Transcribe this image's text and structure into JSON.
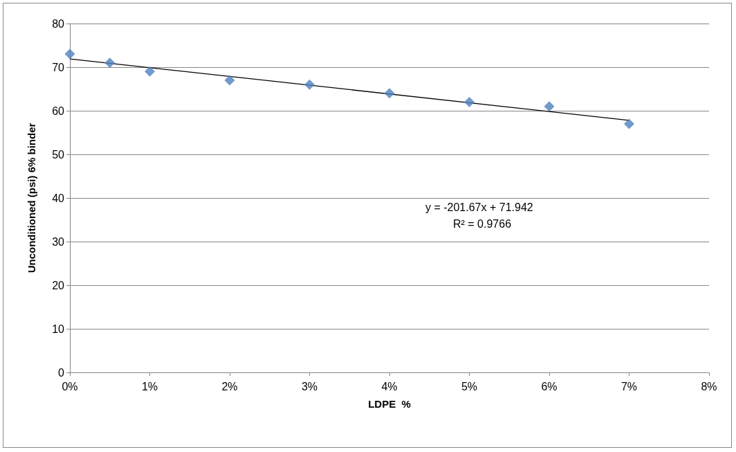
{
  "chart_data": {
    "type": "scatter",
    "xlabel": "LDPE  %",
    "ylabel": "Unconditioned (psi) 6% binder",
    "series": [
      {
        "color": "#4f81bd",
        "marker": "diamond",
        "x": [
          0,
          0.005,
          0.01,
          0.02,
          0.03,
          0.04,
          0.05,
          0.06,
          0.07
        ],
        "values": [
          73,
          71,
          69,
          67,
          66,
          64,
          62,
          61,
          57
        ]
      },
      {
        "type": "line",
        "color": "#000000",
        "marker": "none",
        "line_style": "solid",
        "x": [
          0,
          0.07
        ],
        "values": [
          71.9,
          57.8
        ]
      }
    ],
    "xlim": [
      0,
      0.08
    ],
    "xticks": [
      {
        "value": 0,
        "label": "0%"
      },
      {
        "value": 0.01,
        "label": "1%"
      },
      {
        "value": 0.02,
        "label": "2%"
      },
      {
        "value": 0.03,
        "label": "3%"
      },
      {
        "value": 0.04,
        "label": "4%"
      },
      {
        "value": 0.05,
        "label": "5%"
      },
      {
        "value": 0.06,
        "label": "6%"
      },
      {
        "value": 0.07,
        "label": "7%"
      },
      {
        "value": 0.08,
        "label": "8%"
      }
    ],
    "ylim": [
      0,
      80
    ],
    "yticks": [
      0,
      10,
      20,
      30,
      40,
      50,
      60,
      70,
      80
    ],
    "grid": "y",
    "annotations": [
      "y = -201.67x + 71.942",
      "R² = 0.9766"
    ]
  }
}
